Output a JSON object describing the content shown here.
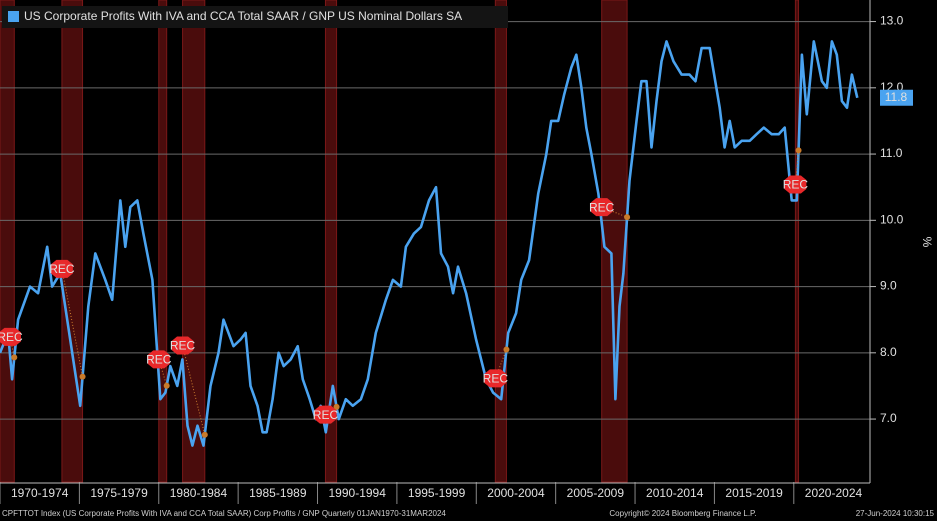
{
  "chart_data": {
    "type": "line",
    "title": "US Corporate Profits With IVA and CCA Total SAAR / GNP US Nominal Dollars SA",
    "y_axis_label": "%",
    "footer_left": "CPFTTOT Index (US Corporate Profits With IVA and CCA Total SAAR) Corp Profits / GNP  Quarterly 01JAN1970-31MAR2024",
    "footer_center": "Copyright© 2024 Bloomberg Finance L.P.",
    "footer_right": "27-Jun-2024 10:30:15",
    "last_value_label": "11.8",
    "xlim": [
      1970,
      2024.8
    ],
    "ylim": [
      6.05,
      13.25
    ],
    "yticks": [
      {
        "value": 7,
        "label": "7.0"
      },
      {
        "value": 8,
        "label": "8.0"
      },
      {
        "value": 9,
        "label": "9.0"
      },
      {
        "value": 10,
        "label": "10.0"
      },
      {
        "value": 11,
        "label": "11.0"
      },
      {
        "value": 12,
        "label": "12.0"
      },
      {
        "value": 13,
        "label": "13.0"
      }
    ],
    "xticks": [
      {
        "value": 1970,
        "label": "1970-1974"
      },
      {
        "value": 1975,
        "label": "1975-1979"
      },
      {
        "value": 1980,
        "label": "1980-1984"
      },
      {
        "value": 1985,
        "label": "1985-1989"
      },
      {
        "value": 1990,
        "label": "1990-1994"
      },
      {
        "value": 1995,
        "label": "1995-1999"
      },
      {
        "value": 2000,
        "label": "2000-2004"
      },
      {
        "value": 2005,
        "label": "2005-2009"
      },
      {
        "value": 2010,
        "label": "2010-2014"
      },
      {
        "value": 2015,
        "label": "2015-2019"
      },
      {
        "value": 2020,
        "label": "2020-2024"
      }
    ],
    "grid": true,
    "recessions": [
      {
        "start": 1969.9,
        "end": 1970.9,
        "label": "REC"
      },
      {
        "start": 1973.9,
        "end": 1975.2,
        "label": "REC"
      },
      {
        "start": 1980.0,
        "end": 1980.5,
        "label": "REC"
      },
      {
        "start": 1981.5,
        "end": 1982.9,
        "label": "REC"
      },
      {
        "start": 1990.5,
        "end": 1991.2,
        "label": "REC"
      },
      {
        "start": 2001.2,
        "end": 2001.9,
        "label": "REC"
      },
      {
        "start": 2007.9,
        "end": 2009.5,
        "label": "REC"
      },
      {
        "start": 2020.1,
        "end": 2020.3,
        "label": "REC"
      }
    ],
    "series": [
      {
        "name": "US Corporate Profits With IVA and CCA Total SAAR / GNP US Nominal Dollars SA",
        "color": "#4aa3f0",
        "x": [
          1970.0,
          1970.51,
          1970.76,
          1971.14,
          1971.89,
          1972.4,
          1972.97,
          1973.28,
          1973.79,
          1974.42,
          1975.05,
          1975.56,
          1976.0,
          1976.63,
          1977.07,
          1977.58,
          1977.89,
          1978.21,
          1978.65,
          1979.03,
          1979.6,
          1980.1,
          1980.42,
          1980.73,
          1981.17,
          1981.49,
          1981.81,
          1982.12,
          1982.44,
          1982.82,
          1983.26,
          1983.76,
          1984.08,
          1984.39,
          1984.71,
          1985.15,
          1985.47,
          1985.78,
          1986.22,
          1986.54,
          1986.79,
          1987.17,
          1987.55,
          1987.87,
          1988.31,
          1988.75,
          1989.07,
          1989.51,
          1989.89,
          1990.2,
          1990.52,
          1990.96,
          1991.34,
          1991.78,
          1992.22,
          1992.73,
          1993.17,
          1993.67,
          1994.31,
          1994.75,
          1995.25,
          1995.57,
          1996.07,
          1996.52,
          1997.02,
          1997.46,
          1997.78,
          1998.22,
          1998.54,
          1998.85,
          1999.36,
          1999.99,
          2000.62,
          2001.06,
          2001.57,
          2002.01,
          2002.51,
          2002.83,
          2003.33,
          2003.9,
          2004.41,
          2004.72,
          2005.16,
          2005.54,
          2005.98,
          2006.3,
          2006.62,
          2006.93,
          2007.25,
          2007.69,
          2008.07,
          2008.51,
          2008.76,
          2009.02,
          2009.27,
          2009.65,
          2010.09,
          2010.4,
          2010.72,
          2011.04,
          2011.35,
          2011.67,
          2011.98,
          2012.42,
          2012.93,
          2013.43,
          2013.81,
          2014.19,
          2014.7,
          2015.33,
          2015.64,
          2015.96,
          2016.28,
          2016.72,
          2017.22,
          2017.66,
          2018.11,
          2018.61,
          2019.05,
          2019.43,
          2019.87,
          2020.19,
          2020.51,
          2020.82,
          2021.26,
          2021.77,
          2022.08,
          2022.4,
          2022.71,
          2023.03,
          2023.35,
          2023.66,
          2024.0
        ],
        "values": [
          8.0,
          8.3,
          7.6,
          8.5,
          9.0,
          8.9,
          9.6,
          9.0,
          9.2,
          8.2,
          7.2,
          8.7,
          9.5,
          9.1,
          8.8,
          10.3,
          9.6,
          10.2,
          10.3,
          9.8,
          9.1,
          7.3,
          7.4,
          7.8,
          7.5,
          7.9,
          6.9,
          6.6,
          6.9,
          6.6,
          7.5,
          8.0,
          8.5,
          8.3,
          8.1,
          8.2,
          8.3,
          7.5,
          7.2,
          6.8,
          6.8,
          7.3,
          8.0,
          7.8,
          7.9,
          8.1,
          7.6,
          7.3,
          7.0,
          7.2,
          6.8,
          7.5,
          7.0,
          7.3,
          7.2,
          7.3,
          7.6,
          8.3,
          8.8,
          9.1,
          9.0,
          9.6,
          9.8,
          9.9,
          10.3,
          10.5,
          9.5,
          9.3,
          8.9,
          9.3,
          8.9,
          8.2,
          7.6,
          7.4,
          7.3,
          8.3,
          8.6,
          9.1,
          9.4,
          10.4,
          11.0,
          11.5,
          11.5,
          11.9,
          12.3,
          12.5,
          12.0,
          11.4,
          11.0,
          10.4,
          9.6,
          9.5,
          7.3,
          8.7,
          9.2,
          10.6,
          11.5,
          12.1,
          12.1,
          11.1,
          11.8,
          12.4,
          12.7,
          12.4,
          12.2,
          12.2,
          12.1,
          12.6,
          12.6,
          11.7,
          11.1,
          11.5,
          11.1,
          11.2,
          11.2,
          11.3,
          11.4,
          11.3,
          11.3,
          11.4,
          10.3,
          10.3,
          12.5,
          11.6,
          12.7,
          12.1,
          12.0,
          12.7,
          12.5,
          11.8,
          11.7,
          12.2,
          11.85
        ]
      }
    ]
  }
}
